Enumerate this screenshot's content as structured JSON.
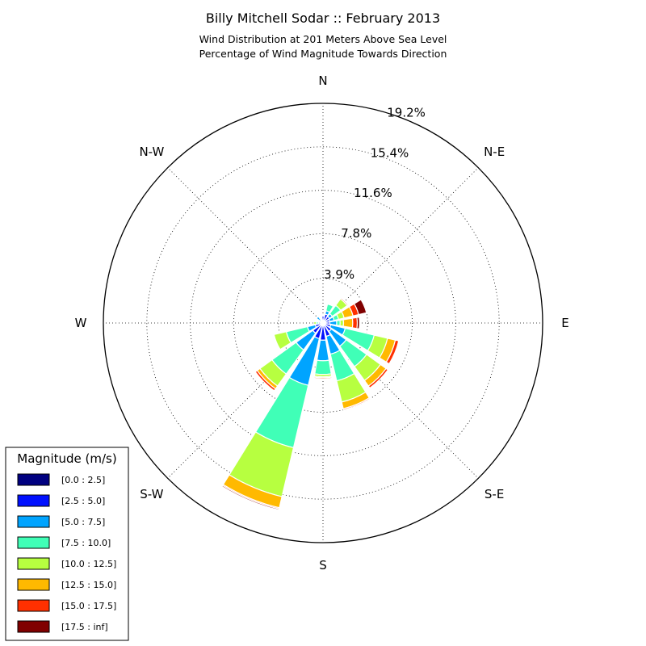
{
  "chart_data": {
    "type": "windrose",
    "title": "Billy Mitchell Sodar :: February 2013",
    "subtitle_lines": [
      "Wind Distribution at 201 Meters Above Sea Level",
      "Percentage of Wind Magnitude Towards Direction"
    ],
    "compass_labels": [
      "N",
      "N-E",
      "E",
      "S-E",
      "S",
      "S-W",
      "W",
      "N-W"
    ],
    "radial_ticks": [
      3.9,
      7.8,
      11.6,
      15.4,
      19.2
    ],
    "radial_tick_labels": [
      "3.9%",
      "7.8%",
      "11.6%",
      "15.4%",
      "19.2%"
    ],
    "rmax": 19.2,
    "legend": {
      "title": "Magnitude (m/s)",
      "placement": "lower-left",
      "entries": [
        {
          "label": "[0.0 : 2.5]",
          "color": "#000080"
        },
        {
          "label": "[2.5 : 5.0]",
          "color": "#0010ff"
        },
        {
          "label": "[5.0 : 7.5]",
          "color": "#00a4ff"
        },
        {
          "label": "[7.5 : 10.0]",
          "color": "#40ffb7"
        },
        {
          "label": "[10.0 : 12.5]",
          "color": "#b7ff40"
        },
        {
          "label": "[12.5 : 15.0]",
          "color": "#ffb900"
        },
        {
          "label": "[15.0 : 17.5]",
          "color": "#ff3000"
        },
        {
          "label": "[17.5 : inf]",
          "color": "#800000"
        }
      ]
    },
    "directions_deg": [
      0,
      22.5,
      45,
      67.5,
      90,
      112.5,
      135,
      157.5,
      180,
      202.5,
      225,
      247.5,
      270,
      292.5,
      315,
      337.5
    ],
    "series": [
      {
        "name": "[0.0 : 2.5]",
        "values": [
          0.1,
          0.1,
          0.1,
          0.1,
          0.1,
          0.1,
          0.1,
          0.1,
          0.1,
          0.1,
          0.1,
          0.1,
          0.1,
          0.1,
          0.1,
          0.1
        ]
      },
      {
        "name": "[2.5 : 5.0]",
        "values": [
          0.5,
          0.7,
          0.6,
          0.5,
          0.5,
          0.6,
          0.8,
          1.1,
          1.4,
          1.3,
          1.0,
          0.6,
          0.3,
          0.2,
          0.2,
          0.2
        ]
      },
      {
        "name": "[5.0 : 7.5]",
        "values": [
          0.0,
          0.3,
          0.3,
          0.4,
          0.6,
          1.3,
          1.6,
          1.6,
          1.8,
          4.2,
          1.8,
          0.7,
          0.0,
          0.0,
          0.4,
          0.0
        ]
      },
      {
        "name": "[7.5 : 10.0]",
        "values": [
          0.0,
          0.6,
          0.9,
          0.4,
          0.3,
          2.6,
          2.2,
          2.4,
          1.2,
          5.6,
          2.6,
          1.9,
          0.2,
          0.0,
          0.0,
          0.0
        ]
      },
      {
        "name": "[10.0 : 12.5]",
        "values": [
          0.0,
          0.0,
          0.7,
          0.5,
          0.3,
          1.2,
          1.5,
          1.9,
          0.2,
          4.4,
          1.3,
          1.1,
          0.2,
          0.0,
          0.0,
          0.0
        ]
      },
      {
        "name": "[12.5 : 15.0]",
        "values": [
          0.0,
          0.0,
          0.0,
          0.8,
          0.8,
          0.7,
          0.6,
          0.6,
          0.1,
          1.0,
          0.3,
          0.0,
          0.0,
          0.0,
          0.0,
          0.0
        ]
      },
      {
        "name": "[15.0 : 17.5]",
        "values": [
          0.0,
          0.0,
          0.1,
          0.5,
          0.4,
          0.3,
          0.2,
          0.1,
          0.1,
          0.1,
          0.2,
          0.0,
          0.0,
          0.0,
          0.0,
          0.0
        ]
      },
      {
        "name": "[17.5 : inf]",
        "values": [
          0.0,
          0.0,
          0.0,
          0.7,
          0.2,
          0.0,
          0.0,
          0.0,
          0.0,
          0.1,
          0.0,
          0.0,
          0.0,
          0.0,
          0.0,
          0.0
        ]
      }
    ]
  }
}
